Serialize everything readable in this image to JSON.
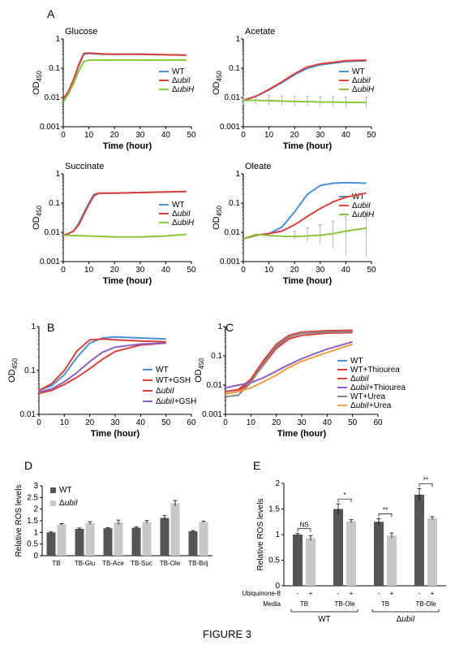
{
  "figure_caption": "FIGURE 3",
  "colors": {
    "wt": "#4a90d6",
    "ubiI": "#d8403a",
    "ubiH": "#8cc43c",
    "ubiI_thiourea": "#8c5fbf",
    "wt_urea": "#8a8a8a",
    "ubiI_urea": "#f0a040",
    "wt_bar": "#555555",
    "ubiI_bar": "#c8c8c8"
  },
  "chart_data": [
    {
      "panel": "A",
      "title": "Glucose",
      "type": "line",
      "xlabel": "Time (hour)",
      "ylabel": "OD",
      "ylabel_sub": "450",
      "yscale": "log",
      "xlim": [
        0,
        50
      ],
      "ylim": [
        0.001,
        1
      ],
      "xticks": [
        "0",
        "10",
        "20",
        "30",
        "40",
        "50"
      ],
      "yticks": [
        "0.001",
        "0.01",
        "0.1",
        "1"
      ],
      "legend_position": "right",
      "series": [
        {
          "name": "WT",
          "x": [
            0,
            2,
            4,
            6,
            8,
            10,
            15,
            20,
            30,
            40,
            48
          ],
          "y": [
            0.009,
            0.016,
            0.04,
            0.12,
            0.3,
            0.32,
            0.3,
            0.3,
            0.3,
            0.29,
            0.28
          ]
        },
        {
          "name": "ubiI",
          "x": [
            0,
            2,
            4,
            6,
            8,
            10,
            15,
            20,
            30,
            40,
            48
          ],
          "y": [
            0.009,
            0.016,
            0.04,
            0.13,
            0.32,
            0.33,
            0.31,
            0.3,
            0.3,
            0.29,
            0.28
          ]
        },
        {
          "name": "ubiH",
          "x": [
            0,
            2,
            4,
            6,
            8,
            10,
            15,
            20,
            30,
            40,
            48
          ],
          "y": [
            0.007,
            0.013,
            0.03,
            0.08,
            0.17,
            0.19,
            0.19,
            0.19,
            0.19,
            0.19,
            0.19
          ]
        }
      ]
    },
    {
      "panel": "A",
      "title": "Acetate",
      "type": "line",
      "xlabel": "Time (hour)",
      "ylabel": "OD",
      "ylabel_sub": "450",
      "yscale": "log",
      "xlim": [
        0,
        50
      ],
      "ylim": [
        0.001,
        1
      ],
      "xticks": [
        "0",
        "10",
        "20",
        "30",
        "40",
        "50"
      ],
      "yticks": [
        "0.001",
        "0.01",
        "0.1",
        "1"
      ],
      "legend_position": "right",
      "series": [
        {
          "name": "WT",
          "x": [
            0,
            5,
            10,
            15,
            20,
            25,
            30,
            35,
            40,
            48
          ],
          "y": [
            0.008,
            0.011,
            0.018,
            0.032,
            0.06,
            0.1,
            0.13,
            0.15,
            0.17,
            0.18
          ]
        },
        {
          "name": "ubiI",
          "x": [
            0,
            5,
            10,
            15,
            20,
            25,
            30,
            35,
            40,
            48
          ],
          "y": [
            0.008,
            0.011,
            0.019,
            0.034,
            0.065,
            0.11,
            0.14,
            0.16,
            0.18,
            0.19
          ]
        },
        {
          "name": "ubiH",
          "x": [
            0,
            5,
            10,
            15,
            20,
            25,
            30,
            35,
            40,
            48
          ],
          "y": [
            0.008,
            0.008,
            0.0078,
            0.0075,
            0.0073,
            0.0072,
            0.007,
            0.007,
            0.0068,
            0.0068
          ],
          "error": 0.5
        }
      ]
    },
    {
      "panel": "A",
      "title": "Succinate",
      "type": "line",
      "xlabel": "Time (hour)",
      "ylabel": "OD",
      "ylabel_sub": "450",
      "yscale": "log",
      "xlim": [
        0,
        50
      ],
      "ylim": [
        0.001,
        1
      ],
      "xticks": [
        "0",
        "10",
        "20",
        "30",
        "40",
        "50"
      ],
      "yticks": [
        "0.001",
        "0.01",
        "0.1",
        "1"
      ],
      "legend_position": "right",
      "series": [
        {
          "name": "WT",
          "x": [
            0,
            2,
            4,
            6,
            8,
            10,
            12,
            14,
            20,
            30,
            40,
            48
          ],
          "y": [
            0.008,
            0.009,
            0.011,
            0.02,
            0.045,
            0.1,
            0.2,
            0.22,
            0.22,
            0.23,
            0.24,
            0.25
          ]
        },
        {
          "name": "ubiI",
          "x": [
            0,
            2,
            4,
            6,
            8,
            10,
            12,
            14,
            20,
            30,
            40,
            48
          ],
          "y": [
            0.008,
            0.009,
            0.011,
            0.018,
            0.04,
            0.09,
            0.18,
            0.22,
            0.22,
            0.23,
            0.24,
            0.25
          ]
        },
        {
          "name": "ubiH",
          "x": [
            0,
            10,
            20,
            30,
            40,
            48
          ],
          "y": [
            0.008,
            0.0075,
            0.007,
            0.007,
            0.0075,
            0.0085
          ]
        }
      ]
    },
    {
      "panel": "A",
      "title": "Oleate",
      "type": "line",
      "xlabel": "Time (hour)",
      "ylabel": "OD",
      "ylabel_sub": "450",
      "yscale": "log",
      "xlim": [
        0,
        50
      ],
      "ylim": [
        0.001,
        1
      ],
      "xticks": [
        "0",
        "10",
        "20",
        "30",
        "40",
        "50"
      ],
      "yticks": [
        "0.001",
        "0.01",
        "0.1",
        "1"
      ],
      "legend_position": "right",
      "series": [
        {
          "name": "WT",
          "x": [
            0,
            5,
            10,
            15,
            20,
            25,
            30,
            35,
            40,
            48
          ],
          "y": [
            0.006,
            0.008,
            0.009,
            0.015,
            0.05,
            0.2,
            0.4,
            0.48,
            0.5,
            0.48
          ]
        },
        {
          "name": "ubiI",
          "x": [
            0,
            5,
            10,
            15,
            20,
            25,
            30,
            35,
            40,
            48
          ],
          "y": [
            0.006,
            0.008,
            0.009,
            0.011,
            0.018,
            0.035,
            0.065,
            0.11,
            0.16,
            0.22
          ]
        },
        {
          "name": "ubiH",
          "x": [
            0,
            5,
            10,
            15,
            20,
            25,
            30,
            35,
            40,
            48
          ],
          "y": [
            0.006,
            0.0085,
            0.0078,
            0.0073,
            0.0072,
            0.0075,
            0.008,
            0.009,
            0.011,
            0.014
          ],
          "error_growing": true
        }
      ]
    },
    {
      "panel": "B",
      "title": "",
      "type": "line",
      "xlabel": "Time (hour)",
      "ylabel": "OD",
      "ylabel_sub": "450",
      "yscale": "log",
      "xlim": [
        0,
        60
      ],
      "ylim": [
        0.01,
        1
      ],
      "xticks": [
        "0",
        "10",
        "20",
        "30",
        "40",
        "50",
        "60"
      ],
      "yticks": [
        "0.01",
        "0.1",
        "1"
      ],
      "legend_position": "bottom-right",
      "series": [
        {
          "name": "WT",
          "x": [
            0,
            5,
            10,
            15,
            20,
            25,
            30,
            40,
            50
          ],
          "y": [
            0.035,
            0.045,
            0.08,
            0.2,
            0.42,
            0.55,
            0.58,
            0.55,
            0.52
          ]
        },
        {
          "name": "WT+GSH",
          "x": [
            0,
            5,
            10,
            15,
            20,
            25,
            30,
            40,
            50
          ],
          "y": [
            0.035,
            0.05,
            0.1,
            0.28,
            0.5,
            0.52,
            0.5,
            0.47,
            0.45
          ]
        },
        {
          "name": "ubiI",
          "x": [
            0,
            5,
            10,
            15,
            20,
            25,
            30,
            40,
            50
          ],
          "y": [
            0.03,
            0.035,
            0.048,
            0.07,
            0.11,
            0.18,
            0.27,
            0.38,
            0.42
          ]
        },
        {
          "name": "ubiI+GSH",
          "x": [
            0,
            5,
            10,
            15,
            20,
            25,
            30,
            40,
            50
          ],
          "y": [
            0.032,
            0.038,
            0.055,
            0.09,
            0.16,
            0.26,
            0.34,
            0.4,
            0.42
          ]
        }
      ]
    },
    {
      "panel": "C",
      "title": "",
      "type": "line",
      "xlabel": "Time (hour)",
      "ylabel": "OD",
      "ylabel_sub": "450",
      "yscale": "log",
      "xlim": [
        0,
        60
      ],
      "ylim": [
        0.001,
        1
      ],
      "xticks": [
        "0",
        "10",
        "20",
        "30",
        "40",
        "50",
        "60"
      ],
      "yticks": [
        "0.001",
        "0.01",
        "0.1",
        "1"
      ],
      "legend_position": "bottom-right",
      "series": [
        {
          "name": "WT",
          "x": [
            0,
            5,
            10,
            15,
            20,
            25,
            30,
            40,
            50
          ],
          "y": [
            0.006,
            0.007,
            0.015,
            0.06,
            0.2,
            0.45,
            0.6,
            0.7,
            0.72
          ]
        },
        {
          "name": "WT+Thiourea",
          "x": [
            0,
            5,
            10,
            15,
            20,
            25,
            30,
            40,
            50
          ],
          "y": [
            0.006,
            0.007,
            0.016,
            0.07,
            0.25,
            0.5,
            0.65,
            0.72,
            0.75
          ]
        },
        {
          "name": "ubiI",
          "x": [
            0,
            5,
            10,
            15,
            20,
            25,
            30,
            40,
            50
          ],
          "y": [
            0.005,
            0.006,
            0.013,
            0.05,
            0.18,
            0.38,
            0.5,
            0.6,
            0.62
          ]
        },
        {
          "name": "ubiI+Thiourea",
          "x": [
            0,
            5,
            10,
            15,
            20,
            25,
            30,
            40,
            50
          ],
          "y": [
            0.008,
            0.01,
            0.012,
            0.018,
            0.03,
            0.05,
            0.08,
            0.17,
            0.3
          ]
        },
        {
          "name": "WT+Urea",
          "x": [
            0,
            5,
            10,
            15,
            20,
            25,
            30,
            40,
            50
          ],
          "y": [
            0.004,
            0.0045,
            0.012,
            0.055,
            0.22,
            0.45,
            0.6,
            0.65,
            0.66
          ]
        },
        {
          "name": "ubiI+Urea",
          "x": [
            0,
            5,
            10,
            15,
            20,
            25,
            30,
            40,
            50
          ],
          "y": [
            0.005,
            0.006,
            0.008,
            0.013,
            0.022,
            0.04,
            0.065,
            0.13,
            0.25
          ]
        }
      ]
    },
    {
      "panel": "D",
      "title": "",
      "type": "bar",
      "xlabel": "",
      "ylabel": "Relative ROS levels",
      "ylim": [
        0,
        3
      ],
      "yticks": [
        "0",
        "0.5",
        "1",
        "1.5",
        "2",
        "2.5",
        "3"
      ],
      "legend_position": "top-left",
      "categories": [
        "TB",
        "TB-Glu",
        "TB-Ace",
        "TB-Suc",
        "TB-Ole",
        "TB-Brij"
      ],
      "series": [
        {
          "name": "WT",
          "values": [
            1.0,
            1.15,
            1.18,
            1.2,
            1.62,
            1.05
          ],
          "errors": [
            0.02,
            0.04,
            0.03,
            0.04,
            0.1,
            0.03
          ]
        },
        {
          "name": "ubiI",
          "values": [
            1.35,
            1.4,
            1.43,
            1.45,
            2.25,
            1.45
          ],
          "errors": [
            0.03,
            0.06,
            0.1,
            0.06,
            0.12,
            0.03
          ]
        }
      ]
    },
    {
      "panel": "E",
      "title": "",
      "type": "bar",
      "xlabel": "",
      "ylabel": "Relative ROS levels",
      "ylim": [
        0,
        2
      ],
      "yticks": [
        "0",
        "0.5",
        "1",
        "1.5",
        "2"
      ],
      "categories": [
        "WT TB",
        "WT TB-Ole",
        "ubiI TB",
        "ubiI TB-Ole"
      ],
      "row_labels": {
        "ubiquinone": "Ubiquinone-8",
        "media": "Media"
      },
      "ubiquinone_signs": [
        "-",
        "+",
        "-",
        "+",
        "-",
        "+",
        "-",
        "+"
      ],
      "media_labels": [
        "TB",
        "TB-Ole",
        "TB",
        "TB-Ole"
      ],
      "group_labels": [
        "WT",
        "ubiI"
      ],
      "significance": [
        "NS",
        "*",
        "**",
        "**"
      ],
      "series": [
        {
          "name": "Ubiquinone-8 -",
          "values": [
            1.0,
            1.5,
            1.25,
            1.78
          ],
          "errors": [
            0.02,
            0.1,
            0.06,
            0.12
          ]
        },
        {
          "name": "Ubiquinone-8 +",
          "values": [
            0.93,
            1.26,
            0.98,
            1.32
          ],
          "errors": [
            0.05,
            0.03,
            0.05,
            0.03
          ]
        }
      ]
    }
  ]
}
